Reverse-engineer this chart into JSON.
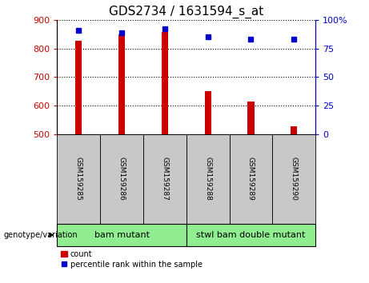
{
  "title": "GDS2734 / 1631594_s_at",
  "samples": [
    "GSM159285",
    "GSM159286",
    "GSM159287",
    "GSM159288",
    "GSM159289",
    "GSM159290"
  ],
  "counts": [
    828,
    848,
    858,
    650,
    615,
    528
  ],
  "percentiles": [
    91,
    89,
    92,
    85,
    83,
    83
  ],
  "ylim_left": [
    500,
    900
  ],
  "ylim_right": [
    0,
    100
  ],
  "yticks_left": [
    500,
    600,
    700,
    800,
    900
  ],
  "yticks_right": [
    0,
    25,
    50,
    75,
    100
  ],
  "bar_color": "#cc0000",
  "dot_color": "#0000cc",
  "group_labels": [
    "bam mutant",
    "stwl bam double mutant"
  ],
  "group_ranges": [
    [
      0,
      3
    ],
    [
      3,
      6
    ]
  ],
  "group_color": "#90ee90",
  "tick_area_color": "#c8c8c8",
  "bar_width": 0.15,
  "title_fontsize": 11
}
